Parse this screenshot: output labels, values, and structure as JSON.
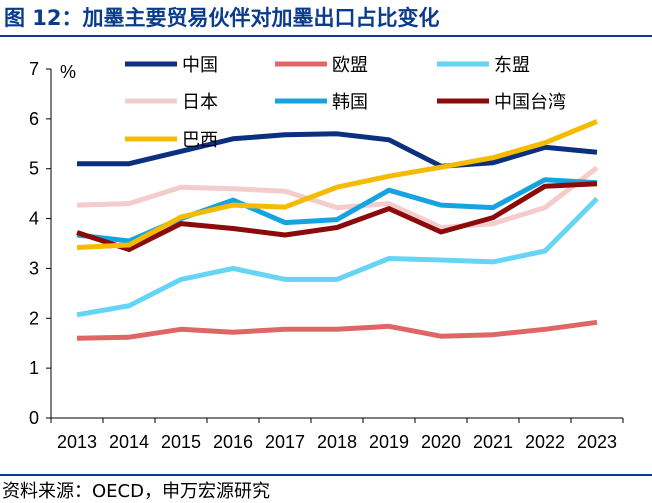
{
  "header": {
    "title": "图 12：加墨主要贸易伙伴对加墨出口占比变化"
  },
  "footer": {
    "source": "资料来源：OECD，申万宏源研究"
  },
  "chart_data": {
    "type": "line",
    "title": "加墨主要贸易伙伴对加墨出口占比变化",
    "ylabel": "%",
    "xlabel": "",
    "ylim": [
      0,
      7
    ],
    "yticks": [
      0,
      1,
      2,
      3,
      4,
      5,
      6,
      7
    ],
    "grid": false,
    "legend_position": "top",
    "x": [
      "2013",
      "2014",
      "2015",
      "2016",
      "2017",
      "2018",
      "2019",
      "2020",
      "2021",
      "2022",
      "2023"
    ],
    "series": [
      {
        "name": "中国",
        "color": "#0b3080",
        "values": [
          5.1,
          5.1,
          5.35,
          5.6,
          5.68,
          5.7,
          5.58,
          5.05,
          5.12,
          5.43,
          5.33
        ]
      },
      {
        "name": "欧盟",
        "color": "#e06666",
        "values": [
          1.6,
          1.62,
          1.78,
          1.72,
          1.78,
          1.78,
          1.84,
          1.64,
          1.67,
          1.78,
          1.92
        ]
      },
      {
        "name": "东盟",
        "color": "#66d4f5",
        "values": [
          2.07,
          2.25,
          2.78,
          3.0,
          2.78,
          2.78,
          3.2,
          3.17,
          3.13,
          3.35,
          4.4
        ]
      },
      {
        "name": "日本",
        "color": "#f4cccc",
        "values": [
          4.27,
          4.3,
          4.63,
          4.6,
          4.55,
          4.22,
          4.3,
          3.82,
          3.9,
          4.22,
          5.02
        ]
      },
      {
        "name": "韩国",
        "color": "#17a2e0",
        "values": [
          3.67,
          3.55,
          4.0,
          4.37,
          3.92,
          3.98,
          4.57,
          4.27,
          4.22,
          4.78,
          4.72
        ]
      },
      {
        "name": "中国台湾",
        "color": "#8b0a0a",
        "values": [
          3.72,
          3.38,
          3.9,
          3.8,
          3.67,
          3.82,
          4.2,
          3.73,
          4.02,
          4.65,
          4.7
        ]
      },
      {
        "name": "巴西",
        "color": "#f5bb00",
        "values": [
          3.42,
          3.47,
          4.03,
          4.27,
          4.23,
          4.63,
          4.85,
          5.03,
          5.22,
          5.52,
          5.95
        ]
      }
    ]
  }
}
